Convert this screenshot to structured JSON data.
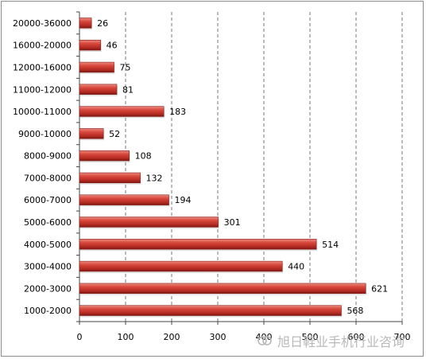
{
  "chart_data": {
    "type": "bar",
    "orientation": "horizontal",
    "categories": [
      "20000-36000",
      "16000-20000",
      "12000-16000",
      "11000-12000",
      "10000-11000",
      "9000-10000",
      "8000-9000",
      "7000-8000",
      "6000-7000",
      "5000-6000",
      "4000-5000",
      "3000-4000",
      "2000-3000",
      "1000-2000"
    ],
    "values": [
      26,
      46,
      75,
      81,
      183,
      52,
      108,
      132,
      194,
      301,
      514,
      440,
      621,
      568
    ],
    "xlim": [
      0,
      700
    ],
    "xticks": [
      0,
      100,
      200,
      300,
      400,
      500,
      600,
      700
    ],
    "grid": true,
    "bar_color": "#c0392b",
    "title": "",
    "xlabel": "",
    "ylabel": ""
  },
  "watermark": {
    "icon": "wechat-channel-icon",
    "text": "旭日鞋业手机行业咨询",
    "color": "#b9b9b9"
  }
}
